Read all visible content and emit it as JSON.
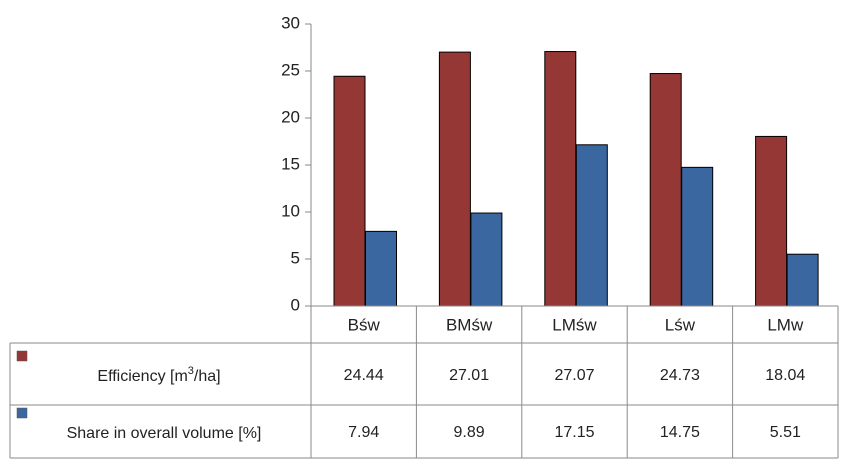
{
  "chart_data": {
    "type": "bar",
    "categories": [
      "Bśw",
      "BMśw",
      "LMśw",
      "Lśw",
      "LMw"
    ],
    "series": [
      {
        "name": "Efficiency [m3/ha]",
        "name_parts": {
          "before": "Efficiency [m",
          "sup": "3",
          "after": "/ha]"
        },
        "color": "#953735",
        "values": [
          24.44,
          27.01,
          27.07,
          24.73,
          18.04
        ],
        "labels": [
          "24.44",
          "27.01",
          "27.07",
          "24.73",
          "18.04"
        ]
      },
      {
        "name": "Share in overall volume [%]",
        "color": "#3A67A0",
        "values": [
          7.94,
          9.89,
          17.15,
          14.75,
          5.51
        ],
        "labels": [
          "7.94",
          "9.89",
          "17.15",
          "14.75",
          "5.51"
        ]
      }
    ],
    "ylim": [
      0,
      30
    ],
    "yticks": [
      0,
      5,
      10,
      15,
      20,
      25,
      30
    ],
    "title": "",
    "xlabel": "",
    "ylabel": "",
    "grid": false,
    "legend": "data-table"
  }
}
